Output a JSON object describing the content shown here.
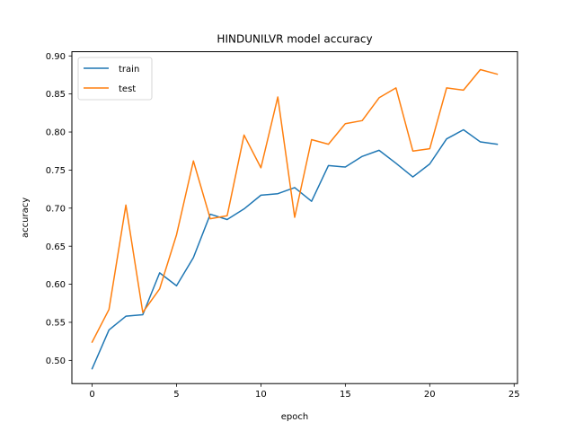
{
  "chart_data": {
    "type": "line",
    "title": "HINDUNILVR model accuracy",
    "xlabel": "epoch",
    "ylabel": "accuracy",
    "xlim": [
      -1.2,
      25.2
    ],
    "ylim": [
      0.4695,
      0.9055
    ],
    "xticks": [
      0,
      5,
      10,
      15,
      20,
      25
    ],
    "yticks": [
      0.5,
      0.55,
      0.6,
      0.65,
      0.7,
      0.75,
      0.8,
      0.85,
      0.9
    ],
    "ytick_labels": [
      "0.50",
      "0.55",
      "0.60",
      "0.65",
      "0.70",
      "0.75",
      "0.80",
      "0.85",
      "0.90"
    ],
    "legend_position": "upper-left",
    "grid": false,
    "x": [
      0,
      1,
      2,
      3,
      4,
      5,
      6,
      7,
      8,
      9,
      10,
      11,
      12,
      13,
      14,
      15,
      16,
      17,
      18,
      19,
      20,
      21,
      22,
      23,
      24
    ],
    "series": [
      {
        "name": "train",
        "color": "#1f77b4",
        "values": [
          0.489,
          0.54,
          0.558,
          0.56,
          0.615,
          0.598,
          0.635,
          0.692,
          0.685,
          0.699,
          0.717,
          0.719,
          0.727,
          0.709,
          0.756,
          0.754,
          0.768,
          0.776,
          0.759,
          0.741,
          0.758,
          0.791,
          0.803,
          0.787,
          0.784
        ]
      },
      {
        "name": "test",
        "color": "#ff7f0e",
        "values": [
          0.524,
          0.567,
          0.704,
          0.563,
          0.594,
          0.665,
          0.762,
          0.686,
          0.69,
          0.796,
          0.753,
          0.846,
          0.688,
          0.79,
          0.784,
          0.811,
          0.815,
          0.845,
          0.858,
          0.775,
          0.778,
          0.858,
          0.855,
          0.882,
          0.876
        ]
      }
    ]
  }
}
